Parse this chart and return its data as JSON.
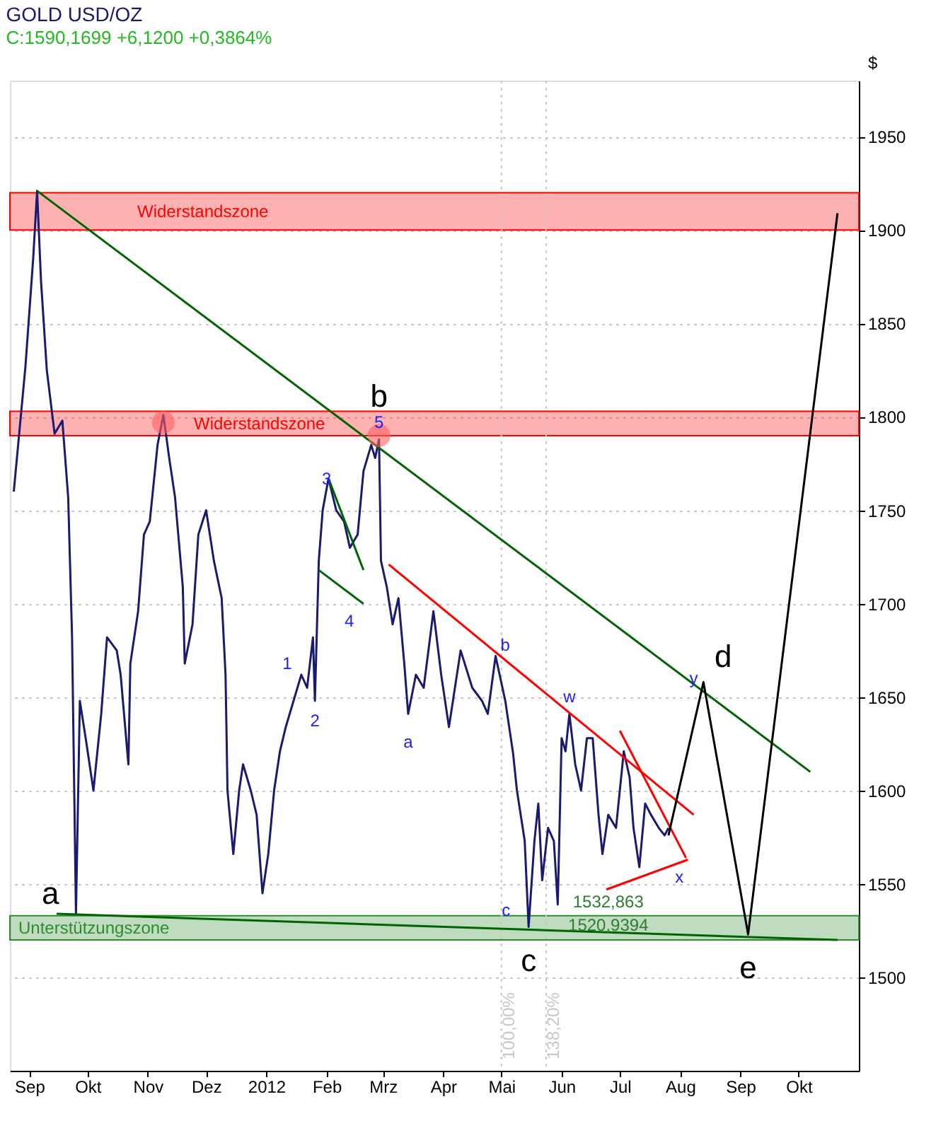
{
  "chart_data": {
    "type": "line",
    "title": "GOLD USD/OZ",
    "subtitle": "C:1590,1699 +6,1200 +0,3864%",
    "ylabel": "$",
    "xlim": [
      "2011-08-22",
      "2012-11-01"
    ],
    "ylim": [
      1450,
      1980
    ],
    "xticks": [
      {
        "value": "2011-09-01",
        "label": "Sep"
      },
      {
        "value": "2011-10-01",
        "label": "Okt"
      },
      {
        "value": "2011-11-01",
        "label": "Nov"
      },
      {
        "value": "2011-12-01",
        "label": "Dez"
      },
      {
        "value": "2012-01-01",
        "label": "2012"
      },
      {
        "value": "2012-02-01",
        "label": "Feb"
      },
      {
        "value": "2012-03-01",
        "label": "Mrz"
      },
      {
        "value": "2012-04-01",
        "label": "Apr"
      },
      {
        "value": "2012-05-01",
        "label": "Mai"
      },
      {
        "value": "2012-06-01",
        "label": "Jun"
      },
      {
        "value": "2012-07-01",
        "label": "Jul"
      },
      {
        "value": "2012-08-01",
        "label": "Aug"
      },
      {
        "value": "2012-09-01",
        "label": "Sep"
      },
      {
        "value": "2012-10-01",
        "label": "Okt"
      }
    ],
    "yticks": [
      1500,
      1550,
      1600,
      1650,
      1700,
      1750,
      1800,
      1850,
      1900,
      1950
    ],
    "grid": "y",
    "bands": [
      {
        "axis": "y",
        "from": 1900,
        "to": 1920,
        "label": "Widerstandszone",
        "color": "#ff0000"
      },
      {
        "axis": "y",
        "from": 1790,
        "to": 1803,
        "label": "Widerstandszone",
        "color": "#ff0000"
      },
      {
        "axis": "y",
        "from": 1520,
        "to": 1533,
        "label": "Unterstützungszone",
        "color": "#2e8b2e"
      }
    ],
    "ref_lines": [
      {
        "axis": "x",
        "value": "2012-05-01",
        "label": "100,00%",
        "color": "#c8c8c8",
        "line_style": "dotted"
      },
      {
        "axis": "x",
        "value": "2012-05-24",
        "label": "138,20%",
        "color": "#c8c8c8",
        "line_style": "dotted"
      }
    ],
    "series": [
      {
        "color": "#1a1a6e",
        "x": [
          "2011-08-24",
          "2011-08-30",
          "2011-09-03",
          "2011-09-05",
          "2011-09-07",
          "2011-09-10",
          "2011-09-14",
          "2011-09-18",
          "2011-09-21",
          "2011-09-23",
          "2011-09-25",
          "2011-09-27",
          "2011-09-30",
          "2011-10-04",
          "2011-10-08",
          "2011-10-11",
          "2011-10-16",
          "2011-10-18",
          "2011-10-22",
          "2011-10-23",
          "2011-10-27",
          "2011-10-30",
          "2011-11-02",
          "2011-11-06",
          "2011-11-09",
          "2011-11-12",
          "2011-11-15",
          "2011-11-19",
          "2011-11-20",
          "2011-11-24",
          "2011-11-27",
          "2011-12-01",
          "2011-12-05",
          "2011-12-09",
          "2011-12-11",
          "2011-12-12",
          "2011-12-15",
          "2011-12-18",
          "2011-12-20",
          "2011-12-24",
          "2011-12-27",
          "2011-12-30",
          "2012-01-02",
          "2012-01-05",
          "2012-01-08",
          "2012-01-11",
          "2012-01-15",
          "2012-01-19",
          "2012-01-22",
          "2012-01-25",
          "2012-01-26",
          "2012-01-28",
          "2012-01-30",
          "2012-02-02",
          "2012-02-06",
          "2012-02-10",
          "2012-02-13",
          "2012-02-17",
          "2012-02-20",
          "2012-02-24",
          "2012-02-26",
          "2012-02-28",
          "2012-02-29",
          "2012-03-03",
          "2012-03-06",
          "2012-03-09",
          "2012-03-12",
          "2012-03-14",
          "2012-03-18",
          "2012-03-22",
          "2012-03-27",
          "2012-03-31",
          "2012-04-04",
          "2012-04-10",
          "2012-04-16",
          "2012-04-21",
          "2012-04-24",
          "2012-04-28",
          "2012-05-03",
          "2012-05-07",
          "2012-05-09",
          "2012-05-13",
          "2012-05-15",
          "2012-05-18",
          "2012-05-20",
          "2012-05-22",
          "2012-05-25",
          "2012-05-28",
          "2012-05-30",
          "2012-06-01",
          "2012-06-03",
          "2012-06-05",
          "2012-06-08",
          "2012-06-11",
          "2012-06-14",
          "2012-06-17",
          "2012-06-20",
          "2012-06-22",
          "2012-06-25",
          "2012-06-29",
          "2012-07-03",
          "2012-07-06",
          "2012-07-08",
          "2012-07-11",
          "2012-07-14",
          "2012-07-17",
          "2012-07-21",
          "2012-07-24",
          "2012-07-26"
        ],
        "values": [
          1760,
          1827,
          1885,
          1921,
          1873,
          1825,
          1791,
          1798,
          1757,
          1682,
          1534,
          1648,
          1628,
          1600,
          1641,
          1682,
          1675,
          1662,
          1614,
          1668,
          1696,
          1737,
          1744,
          1785,
          1801,
          1778,
          1757,
          1709,
          1668,
          1689,
          1737,
          1750,
          1723,
          1703,
          1662,
          1600,
          1566,
          1600,
          1614,
          1600,
          1587,
          1545,
          1566,
          1600,
          1621,
          1634,
          1648,
          1662,
          1655,
          1682,
          1648,
          1723,
          1750,
          1767,
          1750,
          1744,
          1730,
          1737,
          1771,
          1785,
          1778,
          1788,
          1723,
          1709,
          1689,
          1703,
          1668,
          1641,
          1662,
          1655,
          1696,
          1662,
          1634,
          1675,
          1655,
          1648,
          1641,
          1672,
          1648,
          1620,
          1600,
          1573,
          1527,
          1573,
          1593,
          1552,
          1580,
          1573,
          1539,
          1628,
          1621,
          1641,
          1614,
          1600,
          1628,
          1628,
          1587,
          1566,
          1587,
          1580,
          1621,
          1607,
          1580,
          1559,
          1593,
          1587,
          1580,
          1576,
          1580
        ]
      },
      {
        "color": "#006400",
        "x": [
          "2011-09-05",
          "2012-10-07"
        ],
        "values": [
          1921,
          1610
        ]
      },
      {
        "color": "#006400",
        "x": [
          "2011-09-15",
          "2012-10-21"
        ],
        "values": [
          1534,
          1520
        ]
      },
      {
        "color": "#006400",
        "x": [
          "2012-02-02",
          "2012-02-20"
        ],
        "values": [
          1767,
          1718
        ]
      },
      {
        "color": "#006400",
        "x": [
          "2012-01-28",
          "2012-02-20"
        ],
        "values": [
          1718,
          1700
        ]
      },
      {
        "color": "#ff0000",
        "x": [
          "2012-03-04",
          "2012-08-08"
        ],
        "values": [
          1721,
          1587
        ]
      },
      {
        "color": "#ff0000",
        "x": [
          "2012-07-01",
          "2012-08-04"
        ],
        "values": [
          1632,
          1564
        ]
      },
      {
        "color": "#ff0000",
        "x": [
          "2012-06-24",
          "2012-08-05"
        ],
        "values": [
          1547,
          1563
        ]
      },
      {
        "color": "#000000",
        "x": [
          "2012-07-26",
          "2012-08-13",
          "2012-09-05",
          "2012-10-21"
        ],
        "values": [
          1576,
          1658,
          1523,
          1909
        ]
      },
      {
        "type": "scatter",
        "marker": "circle",
        "color": "#ff6060",
        "x": [
          "2011-11-09",
          "2012-02-28"
        ],
        "values": [
          1797,
          1790
        ]
      }
    ],
    "annotations": [
      {
        "text": "a",
        "x": "2011-09-25",
        "y": 1534
      },
      {
        "text": "b",
        "x": "2012-02-28",
        "y": 1788
      },
      {
        "text": "c",
        "x": "2012-05-15",
        "y": 1527
      },
      {
        "text": "d",
        "x": "2012-08-13",
        "y": 1658
      },
      {
        "text": "e",
        "x": "2012-09-05",
        "y": 1523
      },
      {
        "text": "1",
        "x": "2012-01-19",
        "y": 1662
      },
      {
        "text": "2",
        "x": "2012-01-26",
        "y": 1648
      },
      {
        "text": "3",
        "x": "2012-02-01",
        "y": 1767
      },
      {
        "text": "4",
        "x": "2012-02-20",
        "y": 1700
      },
      {
        "text": "5",
        "x": "2012-02-28",
        "y": 1797
      },
      {
        "text": "a",
        "x": "2012-03-14",
        "y": 1641
      },
      {
        "text": "b",
        "x": "2012-05-03",
        "y": 1678
      },
      {
        "text": "c",
        "x": "2012-05-15",
        "y": 1527
      },
      {
        "text": "w",
        "x": "2012-06-05",
        "y": 1641
      },
      {
        "text": "x",
        "x": "2012-08-05",
        "y": 1563
      },
      {
        "text": "y",
        "x": "2012-08-08",
        "y": 1660
      },
      {
        "text": "1532,863",
        "x": "2012-06-25",
        "y": 1533
      },
      {
        "text": "1520,9394",
        "x": "2012-06-25",
        "y": 1528
      }
    ]
  }
}
